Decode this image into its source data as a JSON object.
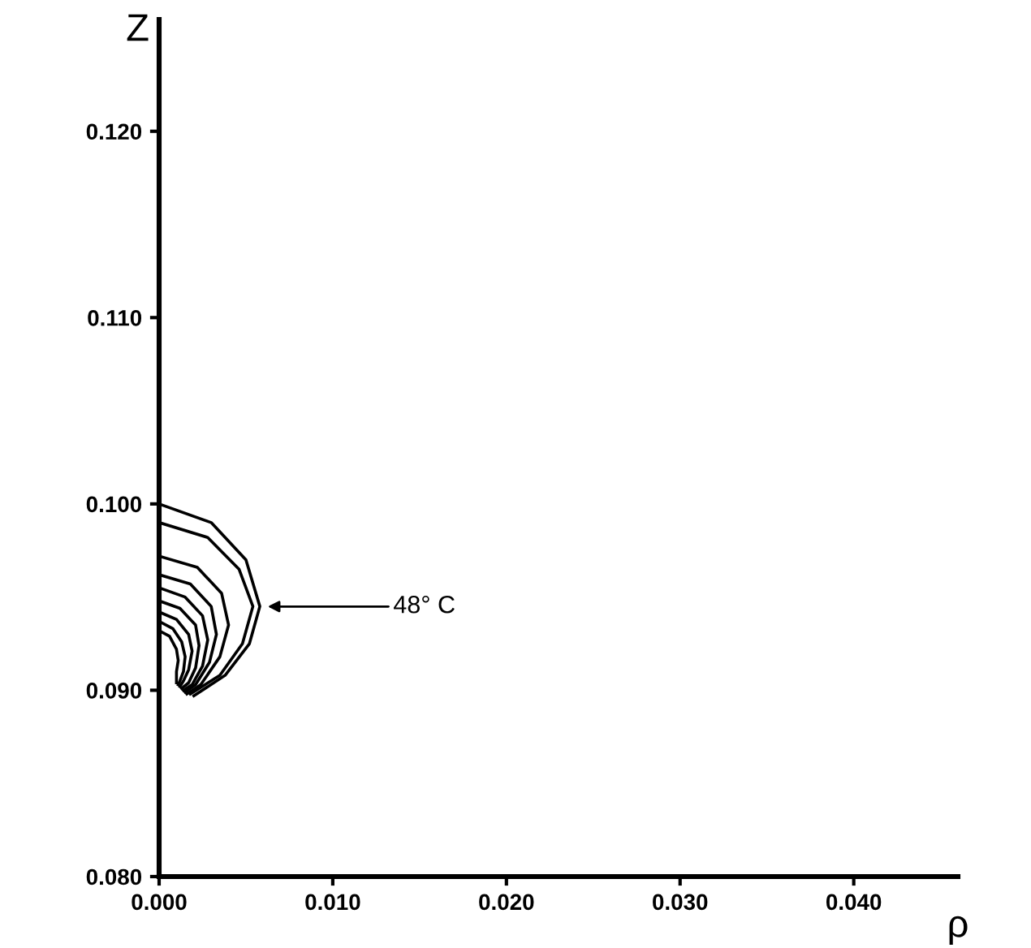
{
  "chart_data": {
    "type": "line",
    "xlabel": "ρ",
    "ylabel": "Z",
    "xlim": [
      0,
      0.046
    ],
    "ylim": [
      0.08,
      0.126
    ],
    "xticks": [
      {
        "value": 0,
        "label": "0.000"
      },
      {
        "value": 0.01,
        "label": "0.010"
      },
      {
        "value": 0.02,
        "label": "0.020"
      },
      {
        "value": 0.03,
        "label": "0.030"
      },
      {
        "value": 0.04,
        "label": "0.040"
      }
    ],
    "yticks": [
      {
        "value": 0.08,
        "label": "0.080"
      },
      {
        "value": 0.09,
        "label": "0.090"
      },
      {
        "value": 0.1,
        "label": "0.100"
      },
      {
        "value": 0.11,
        "label": "0.110"
      },
      {
        "value": 0.12,
        "label": "0.120"
      }
    ],
    "grid": false,
    "marker": "none",
    "line_style": "solid",
    "annotations": [
      "48° C"
    ],
    "series": [
      {
        "color": "#000000",
        "x": [
          0,
          0.003,
          0.005,
          0.0058,
          0.0052,
          0.0038,
          0.002
        ],
        "values": [
          0.1,
          0.099,
          0.097,
          0.0945,
          0.0925,
          0.0908,
          0.0897
        ]
      },
      {
        "color": "#000000",
        "x": [
          0,
          0.0028,
          0.0046,
          0.0054,
          0.0048,
          0.0035,
          0.0018
        ],
        "values": [
          0.099,
          0.0982,
          0.0965,
          0.0945,
          0.0925,
          0.0908,
          0.0898
        ]
      },
      {
        "color": "#000000",
        "x": [
          0,
          0.0022,
          0.0036,
          0.004,
          0.0035,
          0.0024,
          0.0016
        ],
        "values": [
          0.0972,
          0.0966,
          0.0952,
          0.0935,
          0.0918,
          0.0903,
          0.0898
        ]
      },
      {
        "color": "#000000",
        "x": [
          0,
          0.0018,
          0.003,
          0.0033,
          0.0029,
          0.0021,
          0.0015
        ],
        "values": [
          0.0962,
          0.0957,
          0.0945,
          0.093,
          0.0915,
          0.0903,
          0.0899
        ]
      },
      {
        "color": "#000000",
        "x": [
          0,
          0.0015,
          0.0025,
          0.0028,
          0.0025,
          0.0019,
          0.0014
        ],
        "values": [
          0.0955,
          0.095,
          0.094,
          0.0927,
          0.0913,
          0.0903,
          0.09
        ]
      },
      {
        "color": "#000000",
        "x": [
          0,
          0.0012,
          0.0021,
          0.0023,
          0.0021,
          0.0017,
          0.0013
        ],
        "values": [
          0.0948,
          0.0944,
          0.0935,
          0.0924,
          0.0912,
          0.0904,
          0.0901
        ]
      },
      {
        "color": "#000000",
        "x": [
          0,
          0.001,
          0.0017,
          0.0019,
          0.0017,
          0.0014,
          0.0012
        ],
        "values": [
          0.0942,
          0.0938,
          0.093,
          0.0921,
          0.0911,
          0.0905,
          0.0902
        ]
      },
      {
        "color": "#000000",
        "x": [
          0,
          0.0008,
          0.0013,
          0.0015,
          0.0014,
          0.0012,
          0.0011
        ],
        "values": [
          0.0937,
          0.0933,
          0.0926,
          0.0918,
          0.091,
          0.0905,
          0.0903
        ]
      },
      {
        "color": "#000000",
        "x": [
          0,
          0.0006,
          0.001,
          0.0011,
          0.001,
          0.001,
          0.001
        ],
        "values": [
          0.0932,
          0.0929,
          0.0922,
          0.0916,
          0.091,
          0.0906,
          0.0904
        ]
      }
    ]
  }
}
